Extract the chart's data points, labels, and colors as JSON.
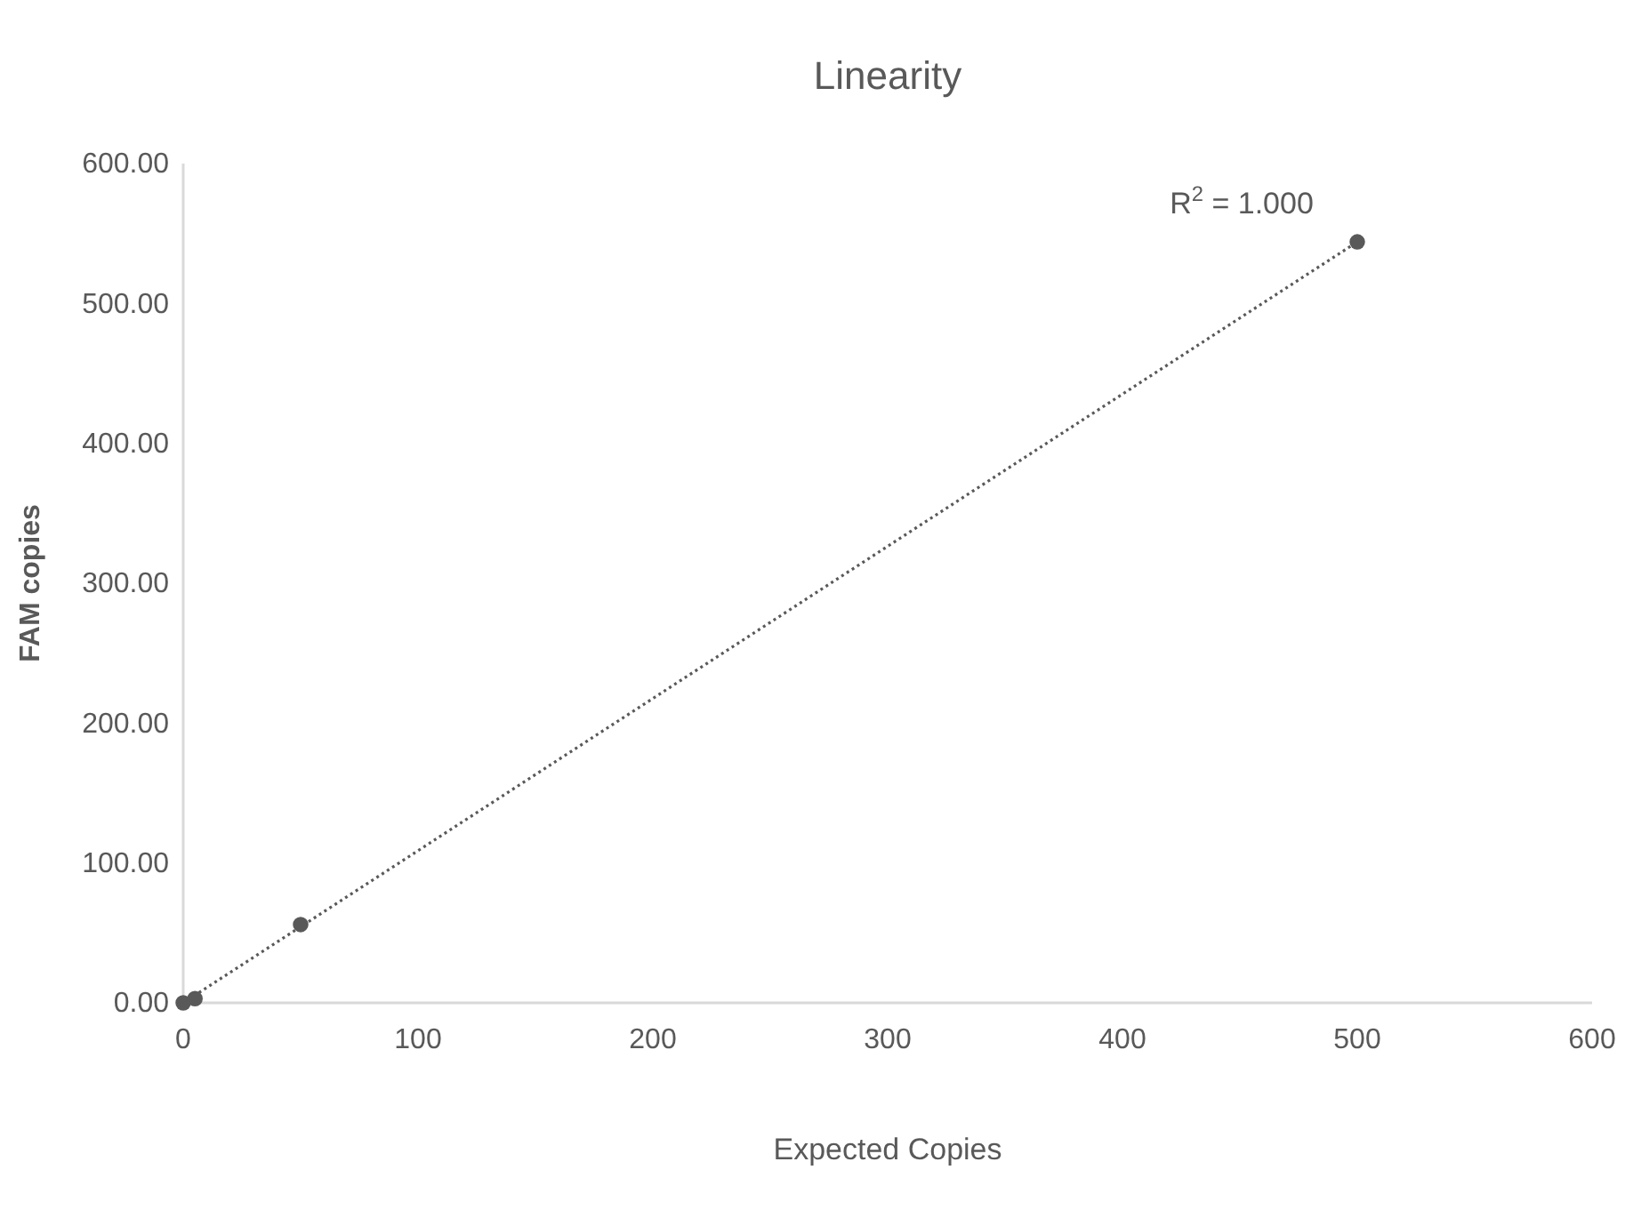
{
  "chart_data": {
    "type": "scatter",
    "title": "Linearity",
    "xlabel": "Expected Copies",
    "ylabel": "FAM copies",
    "annotations": [
      "R$^{2}$ = 1.000"
    ],
    "series": [
      {
        "color": "#595959",
        "x": [
          0,
          5,
          50,
          500
        ],
        "values": [
          0,
          3,
          56,
          544
        ],
        "marker": "circle"
      },
      {
        "type": "line",
        "color": "#595959",
        "x": [
          0,
          500
        ],
        "values": [
          0,
          544
        ],
        "line_style": "dotted",
        "marker": "none"
      }
    ],
    "xlim": [
      0,
      600
    ],
    "xticks": [
      0,
      100,
      200,
      300,
      400,
      500,
      600
    ],
    "ylim": [
      0,
      600
    ],
    "yticks": [
      {
        "value": 0,
        "label": "0.00"
      },
      {
        "value": 100,
        "label": "100.00"
      },
      {
        "value": 200,
        "label": "200.00"
      },
      {
        "value": 300,
        "label": "300.00"
      },
      {
        "value": 400,
        "label": "400.00"
      },
      {
        "value": 500,
        "label": "500.00"
      },
      {
        "value": 600,
        "label": "600.00"
      }
    ],
    "grid": false
  }
}
